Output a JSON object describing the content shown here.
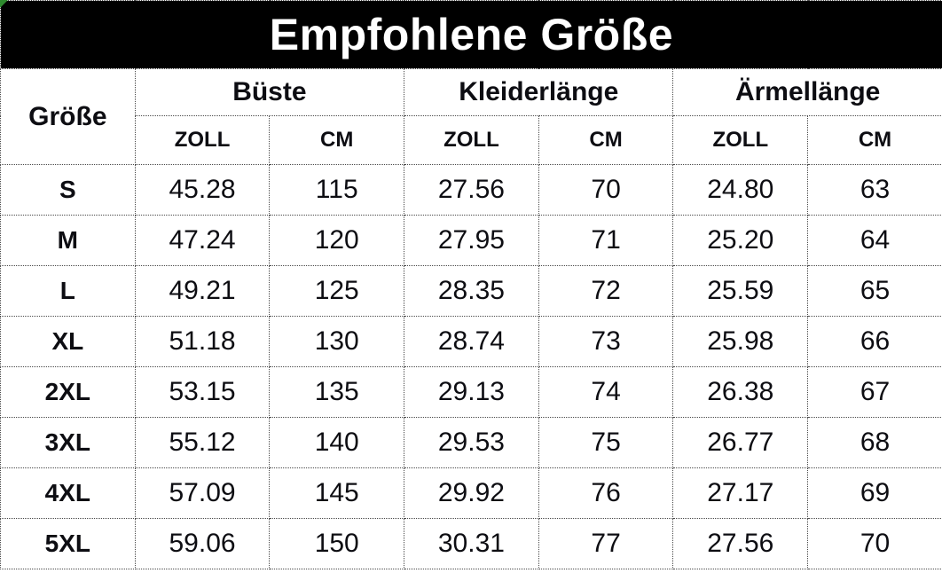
{
  "title": "Empfohlene Größe",
  "table": {
    "size_column_label": "Größe",
    "groups": [
      {
        "label": "Büste"
      },
      {
        "label": "Kleiderlänge"
      },
      {
        "label": "Ärmellänge"
      }
    ],
    "unit_headers": [
      "ZOLL",
      "CM",
      "ZOLL",
      "CM",
      "ZOLL",
      "CM"
    ],
    "rows": [
      {
        "size": "S",
        "buste_zoll": "45.28",
        "buste_cm": "115",
        "kleider_zoll": "27.56",
        "kleider_cm": "70",
        "aermel_zoll": "24.80",
        "aermel_cm": "63"
      },
      {
        "size": "M",
        "buste_zoll": "47.24",
        "buste_cm": "120",
        "kleider_zoll": "27.95",
        "kleider_cm": "71",
        "aermel_zoll": "25.20",
        "aermel_cm": "64"
      },
      {
        "size": "L",
        "buste_zoll": "49.21",
        "buste_cm": "125",
        "kleider_zoll": "28.35",
        "kleider_cm": "72",
        "aermel_zoll": "25.59",
        "aermel_cm": "65"
      },
      {
        "size": "XL",
        "buste_zoll": "51.18",
        "buste_cm": "130",
        "kleider_zoll": "28.74",
        "kleider_cm": "73",
        "aermel_zoll": "25.98",
        "aermel_cm": "66"
      },
      {
        "size": "2XL",
        "buste_zoll": "53.15",
        "buste_cm": "135",
        "kleider_zoll": "29.13",
        "kleider_cm": "74",
        "aermel_zoll": "26.38",
        "aermel_cm": "67"
      },
      {
        "size": "3XL",
        "buste_zoll": "55.12",
        "buste_cm": "140",
        "kleider_zoll": "29.53",
        "kleider_cm": "75",
        "aermel_zoll": "26.77",
        "aermel_cm": "68"
      },
      {
        "size": "4XL",
        "buste_zoll": "57.09",
        "buste_cm": "145",
        "kleider_zoll": "29.92",
        "kleider_cm": "76",
        "aermel_zoll": "27.17",
        "aermel_cm": "69"
      },
      {
        "size": "5XL",
        "buste_zoll": "59.06",
        "buste_cm": "150",
        "kleider_zoll": "30.31",
        "kleider_cm": "77",
        "aermel_zoll": "27.56",
        "aermel_cm": "70"
      }
    ]
  },
  "colors": {
    "banner_bg": "#000000",
    "banner_text": "#ffffff",
    "body_text": "#0d0d12",
    "border": "#4a4a4a",
    "corner_marker": "#2e8b2e"
  }
}
